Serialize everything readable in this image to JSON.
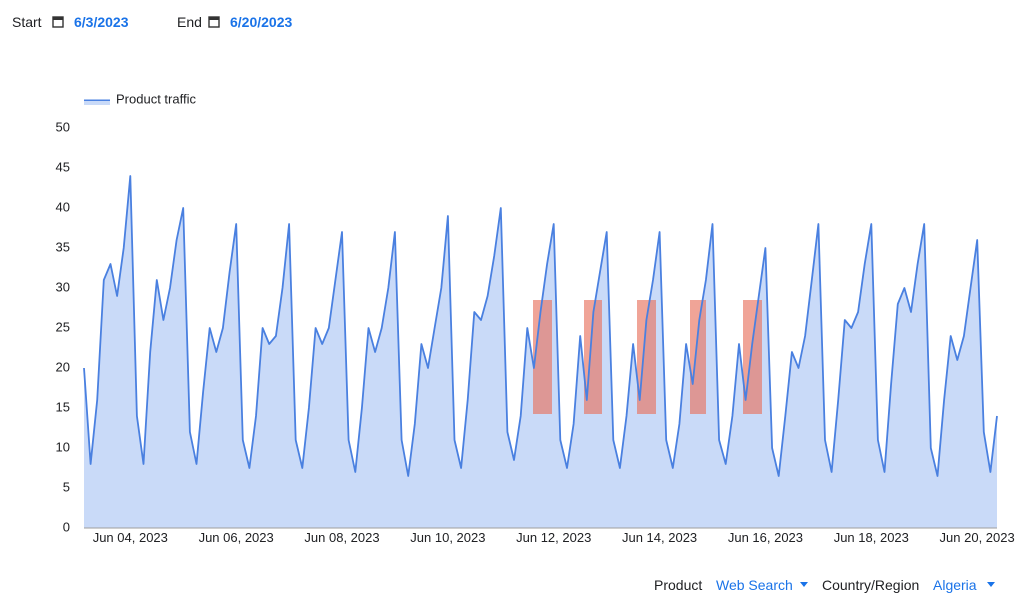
{
  "controls": {
    "start_label": "Start",
    "start_date": "6/3/2023",
    "end_label": "End",
    "end_date": "6/20/2023"
  },
  "chart_data": {
    "type": "area",
    "categories": [
      null,
      null,
      null,
      null,
      null,
      null,
      null,
      "Jun 04, 2023",
      null,
      null,
      null,
      null,
      null,
      null,
      null,
      null,
      null,
      null,
      null,
      null,
      null,
      null,
      null,
      "Jun 06, 2023",
      null,
      null,
      null,
      null,
      null,
      null,
      null,
      null,
      null,
      null,
      null,
      null,
      null,
      null,
      null,
      "Jun 08, 2023",
      null,
      null,
      null,
      null,
      null,
      null,
      null,
      null,
      null,
      null,
      null,
      null,
      null,
      null,
      null,
      "Jun 10, 2023",
      null,
      null,
      null,
      null,
      null,
      null,
      null,
      null,
      null,
      null,
      null,
      null,
      null,
      null,
      null,
      "Jun 12, 2023",
      null,
      null,
      null,
      null,
      null,
      null,
      null,
      null,
      null,
      null,
      null,
      null,
      null,
      null,
      null,
      "Jun 14, 2023",
      null,
      null,
      null,
      null,
      null,
      null,
      null,
      null,
      null,
      null,
      null,
      null,
      null,
      null,
      null,
      "Jun 16, 2023",
      null,
      null,
      null,
      null,
      null,
      null,
      null,
      null,
      null,
      null,
      null,
      null,
      null,
      null,
      null,
      "Jun 18, 2023",
      null,
      null,
      null,
      null,
      null,
      null,
      null,
      null,
      null,
      null,
      null,
      null,
      null,
      null,
      null,
      "Jun 20, 2023",
      null,
      null,
      null
    ],
    "series": [
      {
        "name": "Product traffic",
        "color": "#4a80e0",
        "fill": "#c9daf8",
        "values": [
          20,
          8,
          16,
          31,
          33,
          29,
          35,
          44,
          14,
          8,
          22,
          31,
          26,
          30,
          36,
          40,
          12,
          8,
          17,
          25,
          22,
          25,
          32,
          38,
          11,
          7.5,
          14,
          25,
          23,
          24,
          30,
          38,
          11,
          7.5,
          15,
          25,
          23,
          25,
          31,
          37,
          11,
          7,
          15,
          25,
          22,
          25,
          30,
          37,
          11,
          6.5,
          13,
          23,
          20,
          25,
          30,
          39,
          11,
          7.5,
          16,
          27,
          26,
          29,
          34,
          40,
          12,
          8.5,
          14,
          25,
          20,
          27,
          33,
          38,
          11,
          7.5,
          13,
          24,
          16,
          27,
          32,
          37,
          11,
          7.5,
          14,
          23,
          16,
          26,
          31,
          37,
          11,
          7.5,
          13,
          23,
          18,
          26,
          31,
          38,
          11,
          8,
          14,
          23,
          16,
          23,
          29,
          35,
          10,
          6.5,
          14,
          22,
          20,
          24,
          31,
          38,
          11,
          7,
          16,
          26,
          25,
          27,
          33,
          38,
          11,
          7,
          18,
          28,
          30,
          27,
          33,
          38,
          10,
          6.5,
          16,
          24,
          21,
          24,
          30,
          36,
          12,
          7,
          14
        ]
      }
    ],
    "ylim": [
      0,
      50
    ],
    "yticks": [
      0,
      5,
      10,
      15,
      20,
      25,
      30,
      35,
      40,
      45,
      50
    ],
    "grid": false,
    "legend": "top-left"
  },
  "filters": {
    "product_label": "Product",
    "product_value": "Web Search",
    "region_label": "Country/Region",
    "region_value": "Algeria"
  }
}
